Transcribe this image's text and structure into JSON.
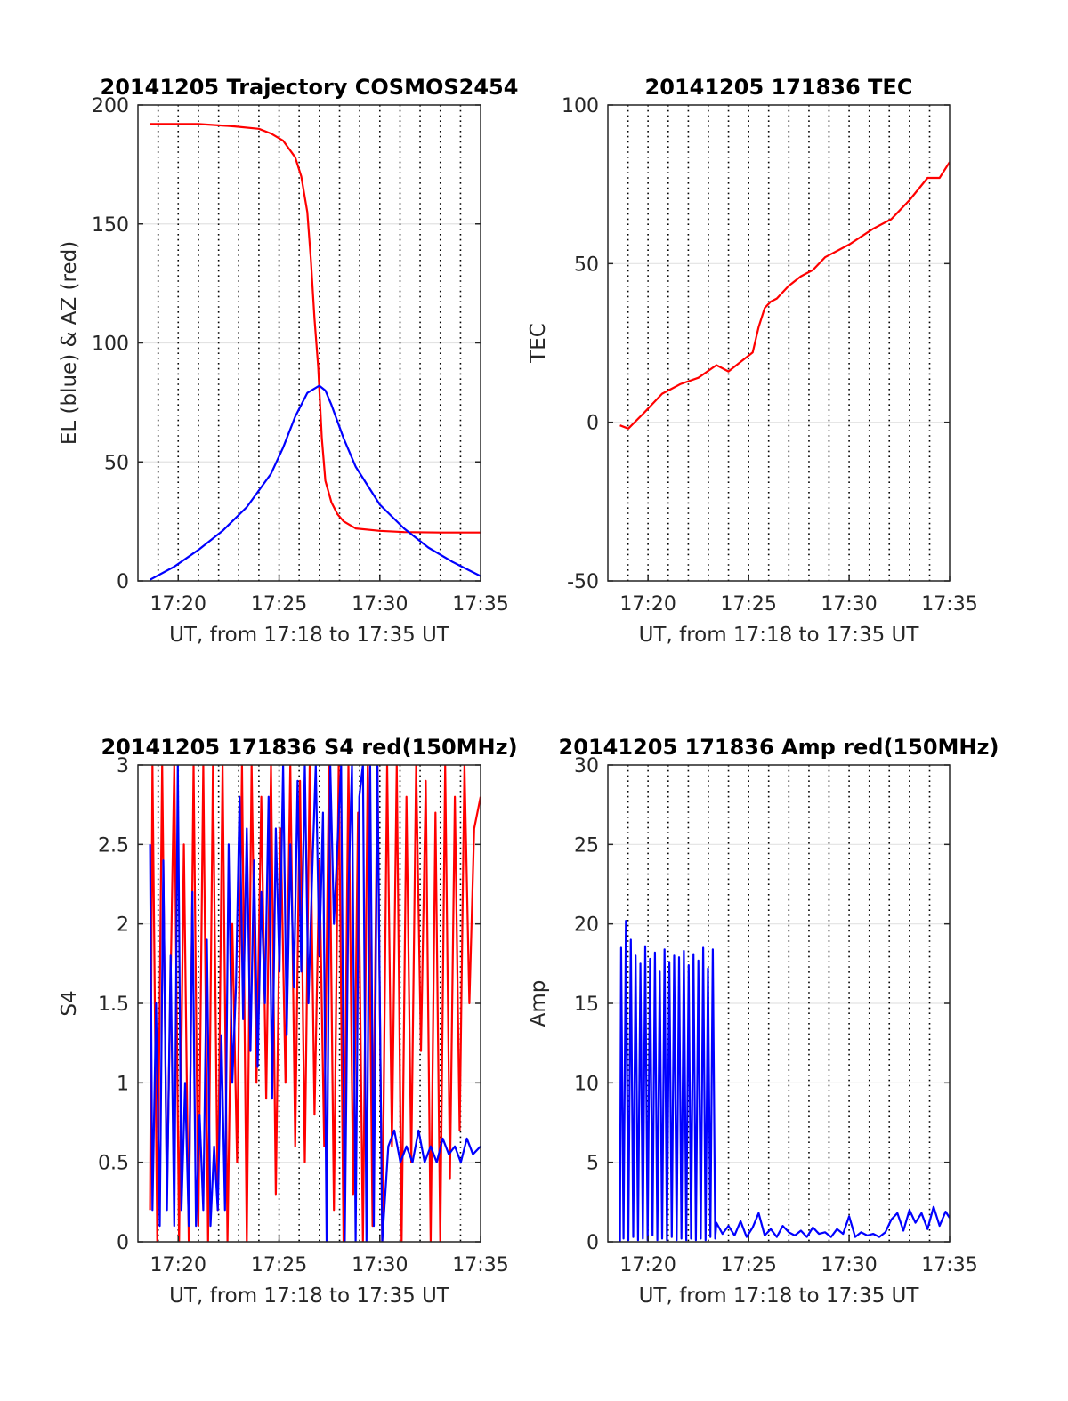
{
  "chart_data": [
    {
      "type": "line",
      "title": "20141205 Trajectory COSMOS2454",
      "xlabel": "UT, from 17:18 to 17:35 UT",
      "ylabel": "EL (blue) & AZ (red)",
      "xlim": [
        17.3,
        17.5833
      ],
      "ylim": [
        0,
        200
      ],
      "x_ticks": [
        "17:20",
        "17:25",
        "17:30",
        "17:35"
      ],
      "y_ticks": [
        "0",
        "50",
        "100",
        "150",
        "200"
      ],
      "grid": "dotted vertical lines, light horizontal gridlines",
      "series": [
        {
          "color": "#ff0000",
          "x": [
            17.31,
            17.35,
            17.38,
            17.4,
            17.41,
            17.42,
            17.43,
            17.435,
            17.44,
            17.443,
            17.446,
            17.449,
            17.452,
            17.455,
            17.46,
            17.465,
            17.47,
            17.48,
            17.5,
            17.52,
            17.55,
            17.5833
          ],
          "values": [
            192,
            192,
            191,
            190,
            188,
            185,
            178,
            170,
            155,
            135,
            110,
            90,
            60,
            42,
            33,
            28,
            25,
            22,
            21,
            20.5,
            20.3,
            20.3
          ]
        },
        {
          "color": "#0000ff",
          "x": [
            17.31,
            17.33,
            17.35,
            17.37,
            17.39,
            17.41,
            17.42,
            17.43,
            17.44,
            17.45,
            17.455,
            17.46,
            17.47,
            17.48,
            17.5,
            17.52,
            17.54,
            17.56,
            17.5833
          ],
          "values": [
            0.5,
            6,
            13,
            21,
            31,
            45,
            56,
            69,
            79,
            82,
            80,
            74,
            60,
            48,
            32,
            22,
            14,
            8,
            2
          ]
        }
      ]
    },
    {
      "type": "line",
      "title": "20141205 171836 TEC",
      "xlabel": "UT, from 17:18 to 17:35 UT",
      "ylabel": "TEC",
      "xlim": [
        17.3,
        17.5833
      ],
      "ylim": [
        -50,
        100
      ],
      "x_ticks": [
        "17:20",
        "17:25",
        "17:30",
        "17:35"
      ],
      "y_ticks": [
        "-50",
        "0",
        "50",
        "100"
      ],
      "grid": "dotted vertical lines, light horizontal gridlines",
      "series": [
        {
          "color": "#ff0000",
          "x": [
            17.31,
            17.317,
            17.33,
            17.345,
            17.36,
            17.375,
            17.39,
            17.4,
            17.41,
            17.42,
            17.425,
            17.43,
            17.435,
            17.44,
            17.45,
            17.46,
            17.47,
            17.48,
            17.5,
            17.52,
            17.535,
            17.55,
            17.565,
            17.575,
            17.5833
          ],
          "values": [
            -1,
            -2,
            3,
            9,
            12,
            14,
            18,
            16,
            19,
            22,
            30,
            36,
            38,
            39,
            43,
            46,
            48,
            52,
            56,
            61,
            64,
            70,
            77,
            77,
            82
          ]
        }
      ]
    },
    {
      "type": "line",
      "title": "20141205 171836 S4 red(150MHz)",
      "xlabel": "UT, from 17:18 to 17:35 UT",
      "ylabel": "S4",
      "xlim": [
        17.3,
        17.5833
      ],
      "ylim": [
        0,
        3
      ],
      "x_ticks": [
        "17:20",
        "17:25",
        "17:30",
        "17:35"
      ],
      "y_ticks": [
        "0",
        "0.5",
        "1",
        "1.5",
        "2",
        "2.5",
        "3"
      ],
      "grid": "dotted vertical lines, light horizontal gridlines",
      "series": [
        {
          "color": "#ff0000",
          "x": [
            17.31,
            17.312,
            17.316,
            17.32,
            17.324,
            17.33,
            17.334,
            17.338,
            17.342,
            17.346,
            17.35,
            17.354,
            17.358,
            17.362,
            17.366,
            17.37,
            17.374,
            17.378,
            17.382,
            17.386,
            17.39,
            17.394,
            17.398,
            17.402,
            17.406,
            17.41,
            17.414,
            17.418,
            17.422,
            17.426,
            17.43,
            17.434,
            17.438,
            17.442,
            17.446,
            17.45,
            17.454,
            17.458,
            17.462,
            17.466,
            17.47,
            17.474,
            17.478,
            17.482,
            17.486,
            17.49,
            17.494,
            17.498,
            17.502,
            17.506,
            17.51,
            17.514,
            17.518,
            17.522,
            17.526,
            17.53,
            17.534,
            17.538,
            17.542,
            17.546,
            17.55,
            17.554,
            17.558,
            17.562,
            17.566,
            17.57,
            17.574,
            17.578,
            17.5833
          ],
          "values": [
            0.2,
            3.0,
            0.0,
            3.0,
            0.3,
            3.0,
            0.0,
            2.5,
            0.0,
            3.0,
            0.1,
            3.0,
            0.0,
            3.0,
            0.2,
            3.0,
            0.0,
            2.0,
            0.5,
            3.0,
            0.0,
            3.0,
            1.0,
            2.8,
            0.9,
            3.0,
            0.3,
            2.6,
            1.0,
            3.0,
            0.6,
            2.9,
            0.5,
            3.0,
            0.8,
            2.4,
            0.6,
            3.0,
            0.2,
            3.0,
            0.0,
            3.0,
            0.3,
            2.7,
            0.0,
            3.0,
            0.1,
            3.0,
            0.0,
            3.0,
            0.6,
            3.0,
            0.0,
            2.8,
            0.5,
            3.0,
            1.2,
            2.9,
            0.0,
            2.7,
            0.0,
            3.0,
            0.4,
            2.8,
            0.7,
            3.0,
            1.5,
            2.6,
            2.8
          ]
        },
        {
          "color": "#0000ff",
          "x": [
            17.31,
            17.312,
            17.315,
            17.318,
            17.321,
            17.324,
            17.327,
            17.33,
            17.333,
            17.336,
            17.339,
            17.342,
            17.345,
            17.348,
            17.351,
            17.354,
            17.357,
            17.36,
            17.363,
            17.366,
            17.369,
            17.372,
            17.375,
            17.378,
            17.381,
            17.384,
            17.387,
            17.39,
            17.393,
            17.396,
            17.399,
            17.402,
            17.405,
            17.408,
            17.411,
            17.414,
            17.417,
            17.42,
            17.423,
            17.426,
            17.429,
            17.432,
            17.435,
            17.438,
            17.441,
            17.444,
            17.447,
            17.45,
            17.453,
            17.456,
            17.459,
            17.462,
            17.465,
            17.468,
            17.471,
            17.474,
            17.477,
            17.48,
            17.483,
            17.486,
            17.489,
            17.492,
            17.495,
            17.498,
            17.502,
            17.507,
            17.512,
            17.517,
            17.522,
            17.527,
            17.532,
            17.537,
            17.542,
            17.547,
            17.552,
            17.557,
            17.562,
            17.567,
            17.572,
            17.577,
            17.5833
          ],
          "values": [
            2.5,
            0.2,
            1.5,
            0.1,
            2.4,
            0.2,
            1.8,
            0.1,
            3.0,
            0.2,
            1.0,
            0.1,
            2.2,
            0.1,
            0.8,
            0.2,
            1.9,
            0.1,
            0.6,
            0.2,
            1.3,
            0.2,
            2.5,
            1.0,
            1.6,
            2.8,
            1.4,
            2.6,
            1.2,
            2.4,
            1.1,
            2.2,
            1.5,
            2.8,
            0.9,
            2.6,
            1.7,
            3.0,
            1.3,
            2.5,
            1.6,
            2.9,
            1.7,
            3.0,
            1.5,
            2.3,
            3.0,
            1.8,
            2.7,
            0.0,
            3.0,
            2.0,
            2.5,
            3.0,
            0.0,
            2.2,
            3.0,
            0.0,
            2.8,
            3.0,
            0.0,
            3.0,
            0.1,
            3.0,
            0.0,
            0.6,
            0.7,
            0.5,
            0.6,
            0.5,
            0.7,
            0.5,
            0.6,
            0.5,
            0.65,
            0.55,
            0.6,
            0.5,
            0.65,
            0.55,
            0.6
          ]
        }
      ]
    },
    {
      "type": "line",
      "title": "20141205 171836 Amp red(150MHz)",
      "xlabel": "UT, from 17:18 to 17:35 UT",
      "ylabel": "Amp",
      "xlim": [
        17.3,
        17.5833
      ],
      "ylim": [
        0,
        30
      ],
      "x_ticks": [
        "17:20",
        "17:25",
        "17:30",
        "17:35"
      ],
      "y_ticks": [
        "0",
        "5",
        "10",
        "15",
        "20",
        "25",
        "30"
      ],
      "grid": "dotted vertical lines, light horizontal gridlines",
      "series": [
        {
          "color": "#0000ff",
          "x": [
            17.31,
            17.311,
            17.313,
            17.315,
            17.317,
            17.319,
            17.321,
            17.323,
            17.325,
            17.327,
            17.329,
            17.331,
            17.333,
            17.335,
            17.337,
            17.339,
            17.341,
            17.343,
            17.345,
            17.347,
            17.349,
            17.351,
            17.353,
            17.355,
            17.357,
            17.359,
            17.361,
            17.363,
            17.365,
            17.367,
            17.369,
            17.371,
            17.373,
            17.375,
            17.377,
            17.379,
            17.381,
            17.383,
            17.385,
            17.387,
            17.389,
            17.39,
            17.395,
            17.4,
            17.405,
            17.41,
            17.415,
            17.42,
            17.425,
            17.43,
            17.435,
            17.44,
            17.445,
            17.45,
            17.455,
            17.46,
            17.465,
            17.47,
            17.475,
            17.48,
            17.485,
            17.49,
            17.495,
            17.5,
            17.505,
            17.51,
            17.515,
            17.52,
            17.525,
            17.53,
            17.535,
            17.54,
            17.545,
            17.55,
            17.555,
            17.56,
            17.565,
            17.57,
            17.575,
            17.58,
            17.5833
          ],
          "values": [
            0.0,
            18.5,
            0.2,
            20.2,
            0.1,
            19.0,
            0.3,
            18.0,
            0.1,
            17.5,
            0.2,
            18.6,
            0.1,
            17.8,
            0.4,
            18.2,
            0.1,
            17.0,
            0.2,
            18.4,
            0.1,
            17.6,
            0.3,
            18.0,
            0.1,
            17.9,
            0.2,
            18.3,
            0.1,
            17.4,
            0.2,
            18.1,
            0.1,
            17.7,
            0.2,
            18.5,
            0.1,
            17.2,
            0.3,
            18.4,
            0.2,
            1.2,
            0.5,
            1.0,
            0.4,
            1.3,
            0.3,
            0.9,
            1.8,
            0.4,
            0.8,
            0.3,
            1.0,
            0.6,
            0.4,
            0.7,
            0.3,
            0.9,
            0.5,
            0.6,
            0.3,
            0.8,
            0.5,
            1.6,
            0.3,
            0.6,
            0.4,
            0.5,
            0.3,
            0.6,
            1.4,
            1.8,
            0.7,
            2.0,
            1.2,
            1.8,
            0.8,
            2.2,
            1.0,
            1.9,
            1.5
          ]
        }
      ]
    }
  ]
}
